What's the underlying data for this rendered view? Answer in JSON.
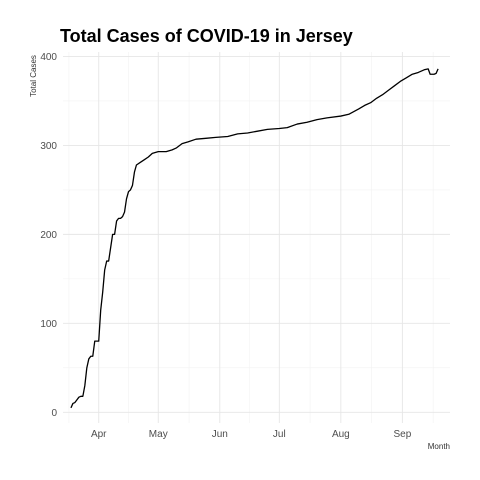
{
  "chart_data": {
    "type": "line",
    "title": "Total Cases of COVID-19 in Jersey",
    "xlabel": "Month",
    "ylabel": "Total Cases",
    "x_tick_labels": [
      {
        "label": "Apr",
        "date": "2020-04-01"
      },
      {
        "label": "May",
        "date": "2020-05-01"
      },
      {
        "label": "Jun",
        "date": "2020-06-01"
      },
      {
        "label": "Jul",
        "date": "2020-07-01"
      },
      {
        "label": "Aug",
        "date": "2020-08-01"
      },
      {
        "label": "Sep",
        "date": "2020-09-01"
      }
    ],
    "y_ticks": [
      0,
      100,
      200,
      300,
      400
    ],
    "xlim": [
      "2020-03-14",
      "2020-09-25"
    ],
    "ylim": [
      -12,
      405
    ],
    "grid": true,
    "line_color": "#000000",
    "series": [
      {
        "points": [
          [
            "2020-03-18",
            5
          ],
          [
            "2020-03-19",
            10
          ],
          [
            "2020-03-20",
            11
          ],
          [
            "2020-03-21",
            14
          ],
          [
            "2020-03-22",
            17
          ],
          [
            "2020-03-23",
            18
          ],
          [
            "2020-03-24",
            18
          ],
          [
            "2020-03-25",
            30
          ],
          [
            "2020-03-26",
            50
          ],
          [
            "2020-03-27",
            60
          ],
          [
            "2020-03-28",
            63
          ],
          [
            "2020-03-29",
            63
          ],
          [
            "2020-03-30",
            80
          ],
          [
            "2020-03-31",
            80
          ],
          [
            "2020-04-01",
            80
          ],
          [
            "2020-04-02",
            115
          ],
          [
            "2020-04-03",
            135
          ],
          [
            "2020-04-04",
            160
          ],
          [
            "2020-04-05",
            170
          ],
          [
            "2020-04-06",
            170
          ],
          [
            "2020-04-07",
            185
          ],
          [
            "2020-04-08",
            200
          ],
          [
            "2020-04-09",
            200
          ],
          [
            "2020-04-10",
            215
          ],
          [
            "2020-04-11",
            218
          ],
          [
            "2020-04-12",
            218
          ],
          [
            "2020-04-13",
            220
          ],
          [
            "2020-04-14",
            225
          ],
          [
            "2020-04-15",
            240
          ],
          [
            "2020-04-16",
            248
          ],
          [
            "2020-04-17",
            250
          ],
          [
            "2020-04-18",
            255
          ],
          [
            "2020-04-19",
            270
          ],
          [
            "2020-04-20",
            278
          ],
          [
            "2020-04-22",
            281
          ],
          [
            "2020-04-24",
            284
          ],
          [
            "2020-04-26",
            287
          ],
          [
            "2020-04-28",
            291
          ],
          [
            "2020-05-01",
            293
          ],
          [
            "2020-05-05",
            293
          ],
          [
            "2020-05-08",
            295
          ],
          [
            "2020-05-10",
            297
          ],
          [
            "2020-05-13",
            302
          ],
          [
            "2020-05-16",
            304
          ],
          [
            "2020-05-20",
            307
          ],
          [
            "2020-05-25",
            308
          ],
          [
            "2020-05-30",
            309
          ],
          [
            "2020-06-05",
            310
          ],
          [
            "2020-06-10",
            313
          ],
          [
            "2020-06-15",
            314
          ],
          [
            "2020-06-20",
            316
          ],
          [
            "2020-06-25",
            318
          ],
          [
            "2020-07-01",
            319
          ],
          [
            "2020-07-05",
            320
          ],
          [
            "2020-07-10",
            324
          ],
          [
            "2020-07-15",
            326
          ],
          [
            "2020-07-20",
            329
          ],
          [
            "2020-07-25",
            331
          ],
          [
            "2020-08-01",
            333
          ],
          [
            "2020-08-05",
            335
          ],
          [
            "2020-08-10",
            341
          ],
          [
            "2020-08-13",
            345
          ],
          [
            "2020-08-16",
            348
          ],
          [
            "2020-08-19",
            353
          ],
          [
            "2020-08-22",
            357
          ],
          [
            "2020-08-25",
            362
          ],
          [
            "2020-08-28",
            367
          ],
          [
            "2020-08-31",
            372
          ],
          [
            "2020-09-03",
            376
          ],
          [
            "2020-09-06",
            380
          ],
          [
            "2020-09-09",
            382
          ],
          [
            "2020-09-12",
            385
          ],
          [
            "2020-09-14",
            386
          ],
          [
            "2020-09-15",
            380
          ],
          [
            "2020-09-17",
            380
          ],
          [
            "2020-09-18",
            381
          ],
          [
            "2020-09-19",
            386
          ]
        ]
      }
    ]
  }
}
